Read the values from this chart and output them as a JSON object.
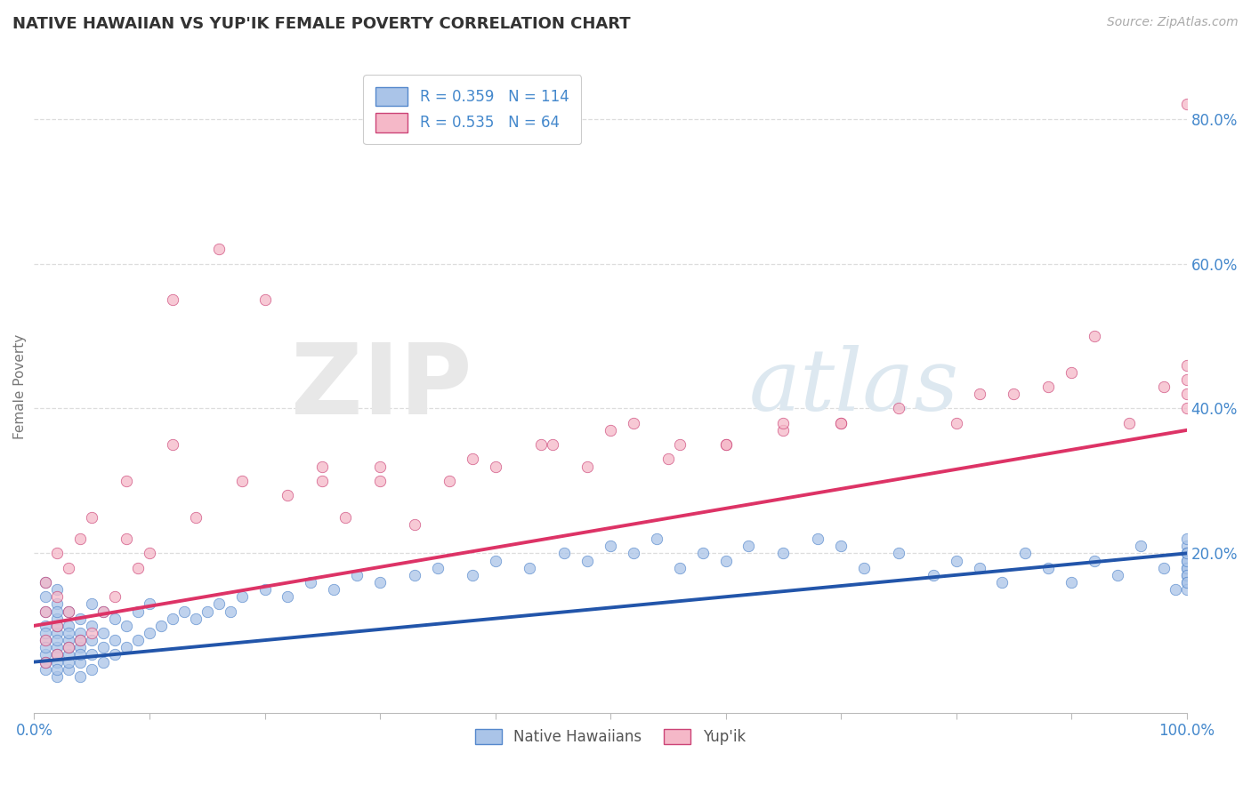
{
  "title": "NATIVE HAWAIIAN VS YUP'IK FEMALE POVERTY CORRELATION CHART",
  "source": "Source: ZipAtlas.com",
  "xlabel": "",
  "ylabel": "Female Poverty",
  "watermark_zip": "ZIP",
  "watermark_atlas": "atlas",
  "legend_label1": "Native Hawaiians",
  "legend_label2": "Yup'ik",
  "r1": 0.359,
  "n1": 114,
  "r2": 0.535,
  "n2": 64,
  "color1": "#aac4e8",
  "color2": "#f5b8c8",
  "edge_color1": "#5588cc",
  "edge_color2": "#cc4477",
  "line_color1": "#2255aa",
  "line_color2": "#dd3366",
  "xlim": [
    0,
    1.0
  ],
  "ylim": [
    -0.02,
    0.88
  ],
  "ytick_labels": [
    "20.0%",
    "40.0%",
    "60.0%",
    "80.0%"
  ],
  "ytick_values": [
    0.2,
    0.4,
    0.6,
    0.8
  ],
  "xtick_labels": [
    "0.0%",
    "100.0%"
  ],
  "xtick_values": [
    0.0,
    1.0
  ],
  "background_color": "#ffffff",
  "grid_color": "#dddddd",
  "title_color": "#333333",
  "axis_label_color": "#777777",
  "tick_label_color": "#4488cc",
  "trend_line1_x": [
    0.0,
    1.0
  ],
  "trend_line1_y": [
    0.05,
    0.2
  ],
  "trend_line2_x": [
    0.0,
    1.0
  ],
  "trend_line2_y": [
    0.1,
    0.37
  ],
  "nh_x": [
    0.01,
    0.01,
    0.01,
    0.01,
    0.01,
    0.01,
    0.01,
    0.01,
    0.01,
    0.01,
    0.02,
    0.02,
    0.02,
    0.02,
    0.02,
    0.02,
    0.02,
    0.02,
    0.02,
    0.02,
    0.02,
    0.02,
    0.03,
    0.03,
    0.03,
    0.03,
    0.03,
    0.03,
    0.03,
    0.03,
    0.04,
    0.04,
    0.04,
    0.04,
    0.04,
    0.04,
    0.04,
    0.05,
    0.05,
    0.05,
    0.05,
    0.05,
    0.06,
    0.06,
    0.06,
    0.06,
    0.07,
    0.07,
    0.07,
    0.08,
    0.08,
    0.09,
    0.09,
    0.1,
    0.1,
    0.11,
    0.12,
    0.13,
    0.14,
    0.15,
    0.16,
    0.17,
    0.18,
    0.2,
    0.22,
    0.24,
    0.26,
    0.28,
    0.3,
    0.33,
    0.35,
    0.38,
    0.4,
    0.43,
    0.46,
    0.48,
    0.5,
    0.52,
    0.54,
    0.56,
    0.58,
    0.6,
    0.62,
    0.65,
    0.68,
    0.7,
    0.72,
    0.75,
    0.78,
    0.8,
    0.82,
    0.84,
    0.86,
    0.88,
    0.9,
    0.92,
    0.94,
    0.96,
    0.98,
    0.99,
    1.0,
    1.0,
    1.0,
    1.0,
    1.0,
    1.0,
    1.0,
    1.0,
    1.0,
    1.0,
    1.0,
    1.0,
    1.0,
    1.0
  ],
  "nh_y": [
    0.04,
    0.06,
    0.08,
    0.1,
    0.12,
    0.14,
    0.16,
    0.05,
    0.07,
    0.09,
    0.03,
    0.05,
    0.07,
    0.09,
    0.11,
    0.13,
    0.15,
    0.04,
    0.06,
    0.08,
    0.1,
    0.12,
    0.04,
    0.06,
    0.08,
    0.1,
    0.12,
    0.05,
    0.07,
    0.09,
    0.03,
    0.05,
    0.07,
    0.09,
    0.11,
    0.06,
    0.08,
    0.04,
    0.06,
    0.08,
    0.1,
    0.13,
    0.05,
    0.07,
    0.09,
    0.12,
    0.06,
    0.08,
    0.11,
    0.07,
    0.1,
    0.08,
    0.12,
    0.09,
    0.13,
    0.1,
    0.11,
    0.12,
    0.11,
    0.12,
    0.13,
    0.12,
    0.14,
    0.15,
    0.14,
    0.16,
    0.15,
    0.17,
    0.16,
    0.17,
    0.18,
    0.17,
    0.19,
    0.18,
    0.2,
    0.19,
    0.21,
    0.2,
    0.22,
    0.18,
    0.2,
    0.19,
    0.21,
    0.2,
    0.22,
    0.21,
    0.18,
    0.2,
    0.17,
    0.19,
    0.18,
    0.16,
    0.2,
    0.18,
    0.16,
    0.19,
    0.17,
    0.21,
    0.18,
    0.15,
    0.19,
    0.17,
    0.21,
    0.18,
    0.2,
    0.16,
    0.22,
    0.18,
    0.2,
    0.17,
    0.15,
    0.19,
    0.16,
    0.2
  ],
  "yp_x": [
    0.01,
    0.01,
    0.01,
    0.01,
    0.02,
    0.02,
    0.02,
    0.02,
    0.03,
    0.03,
    0.03,
    0.04,
    0.04,
    0.05,
    0.05,
    0.06,
    0.07,
    0.08,
    0.09,
    0.1,
    0.12,
    0.14,
    0.16,
    0.18,
    0.2,
    0.22,
    0.25,
    0.27,
    0.3,
    0.33,
    0.36,
    0.4,
    0.44,
    0.48,
    0.52,
    0.56,
    0.6,
    0.65,
    0.7,
    0.75,
    0.8,
    0.85,
    0.88,
    0.9,
    0.92,
    0.95,
    0.98,
    1.0,
    1.0,
    1.0,
    1.0,
    1.0,
    0.08,
    0.12,
    0.25,
    0.38,
    0.5,
    0.6,
    0.7,
    0.82,
    0.3,
    0.45,
    0.55,
    0.65
  ],
  "yp_y": [
    0.05,
    0.08,
    0.12,
    0.16,
    0.06,
    0.1,
    0.14,
    0.2,
    0.07,
    0.12,
    0.18,
    0.08,
    0.22,
    0.09,
    0.25,
    0.12,
    0.14,
    0.22,
    0.18,
    0.2,
    0.55,
    0.25,
    0.62,
    0.3,
    0.55,
    0.28,
    0.3,
    0.25,
    0.32,
    0.24,
    0.3,
    0.32,
    0.35,
    0.32,
    0.38,
    0.35,
    0.35,
    0.37,
    0.38,
    0.4,
    0.38,
    0.42,
    0.43,
    0.45,
    0.5,
    0.38,
    0.43,
    0.82,
    0.42,
    0.4,
    0.44,
    0.46,
    0.3,
    0.35,
    0.32,
    0.33,
    0.37,
    0.35,
    0.38,
    0.42,
    0.3,
    0.35,
    0.33,
    0.38
  ]
}
